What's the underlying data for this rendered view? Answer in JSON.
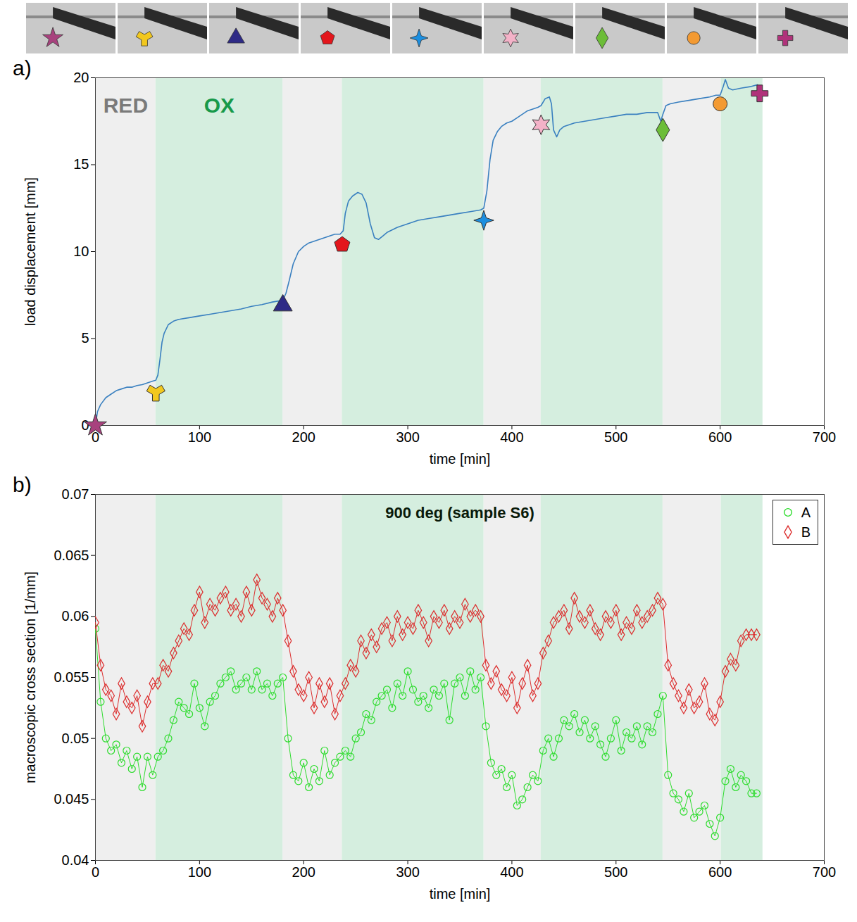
{
  "chart_data": [
    {
      "type": "line",
      "panel": "a)",
      "x_label": "time [min]",
      "y_label": "load displacement [mm]",
      "color": "#3a80c0",
      "xlim": [
        0,
        700
      ],
      "xticks": [
        0,
        100,
        200,
        300,
        400,
        500,
        600,
        700
      ],
      "ylim": [
        0,
        20
      ],
      "yticks": [
        0,
        5,
        10,
        15,
        20
      ],
      "bands": [
        {
          "start": 0,
          "end": 58,
          "phase": "RED"
        },
        {
          "start": 58,
          "end": 180,
          "phase": "OX"
        },
        {
          "start": 180,
          "end": 237,
          "phase": "RED"
        },
        {
          "start": 237,
          "end": 373,
          "phase": "OX"
        },
        {
          "start": 373,
          "end": 428,
          "phase": "RED"
        },
        {
          "start": 428,
          "end": 545,
          "phase": "OX"
        },
        {
          "start": 545,
          "end": 601,
          "phase": "RED"
        },
        {
          "start": 601,
          "end": 641,
          "phase": "OX"
        }
      ],
      "markers": [
        {
          "x": 0,
          "y": 0,
          "marker": "star",
          "color": "#a8427e"
        },
        {
          "x": 58,
          "y": 1.9,
          "marker": "wye",
          "color": "#f2c81e"
        },
        {
          "x": 180,
          "y": 6.9,
          "marker": "triangle",
          "color": "#2e2a86"
        },
        {
          "x": 237,
          "y": 10.4,
          "marker": "pentagon",
          "color": "#e3161c"
        },
        {
          "x": 373,
          "y": 11.8,
          "marker": "star4",
          "color": "#1c8fe0"
        },
        {
          "x": 428,
          "y": 17.3,
          "marker": "star6",
          "color": "#f4b2c8"
        },
        {
          "x": 545,
          "y": 17,
          "marker": "diamond",
          "color": "#6cbd38"
        },
        {
          "x": 600,
          "y": 18.5,
          "marker": "circle",
          "color": "#f39a32"
        },
        {
          "x": 638,
          "y": 19.1,
          "marker": "plus",
          "color": "#b0327a"
        }
      ],
      "x": [
        0,
        2,
        5,
        10,
        15,
        20,
        25,
        30,
        35,
        40,
        45,
        50,
        55,
        58,
        60,
        62,
        64,
        66,
        70,
        75,
        80,
        90,
        100,
        110,
        120,
        130,
        140,
        150,
        160,
        170,
        180,
        183,
        186,
        190,
        195,
        200,
        205,
        210,
        215,
        220,
        225,
        230,
        235,
        238,
        240,
        243,
        247,
        252,
        256,
        260,
        264,
        268,
        272,
        276,
        280,
        290,
        300,
        310,
        320,
        330,
        340,
        350,
        360,
        370,
        373,
        376,
        379,
        382,
        386,
        390,
        395,
        400,
        405,
        410,
        415,
        420,
        425,
        428,
        432,
        436,
        438,
        440,
        443,
        446,
        450,
        460,
        470,
        480,
        490,
        500,
        510,
        520,
        530,
        540,
        543,
        545,
        548,
        552,
        560,
        570,
        580,
        590,
        596,
        600,
        603,
        605,
        608,
        612,
        620,
        630,
        636
      ],
      "values": [
        0,
        0.8,
        1.2,
        1.6,
        1.8,
        2.0,
        2.1,
        2.2,
        2.2,
        2.3,
        2.35,
        2.45,
        2.55,
        2.6,
        2.9,
        3.8,
        4.8,
        5.3,
        5.8,
        6.0,
        6.1,
        6.2,
        6.3,
        6.4,
        6.5,
        6.6,
        6.7,
        6.85,
        6.95,
        7.1,
        7.2,
        7.6,
        8.3,
        9.3,
        10.0,
        10.3,
        10.5,
        10.6,
        10.7,
        10.8,
        10.9,
        11.0,
        11.0,
        11.2,
        12.2,
        12.9,
        13.2,
        13.4,
        13.3,
        12.8,
        11.6,
        10.8,
        10.7,
        10.9,
        11.1,
        11.4,
        11.6,
        11.8,
        11.9,
        12.0,
        12.1,
        12.2,
        12.3,
        12.4,
        12.5,
        13.5,
        15.3,
        16.4,
        16.9,
        17.2,
        17.4,
        17.5,
        17.7,
        17.9,
        18.1,
        18.2,
        18.3,
        18.4,
        18.8,
        18.9,
        18.5,
        17.0,
        16.6,
        17.0,
        17.2,
        17.4,
        17.5,
        17.6,
        17.7,
        17.8,
        17.9,
        17.9,
        18.0,
        18.0,
        17.5,
        17.9,
        18.4,
        18.5,
        18.6,
        18.7,
        18.8,
        18.9,
        19.0,
        19.0,
        19.5,
        19.9,
        19.4,
        19.3,
        19.4,
        19.5,
        19.6
      ]
    },
    {
      "type": "scatter",
      "panel": "b)",
      "title": "900 deg (sample S6)",
      "x_label": "time [min]",
      "y_label": "macroscopic cross section [1/mm]",
      "xlim": [
        0,
        700
      ],
      "xticks": [
        0,
        100,
        200,
        300,
        400,
        500,
        600,
        700
      ],
      "ylim": [
        0.04,
        0.07
      ],
      "yticks": [
        0.04,
        0.045,
        0.05,
        0.055,
        0.06,
        0.065,
        0.07
      ],
      "legend": "top-right",
      "bands": [
        {
          "start": 0,
          "end": 58
        },
        {
          "start": 58,
          "end": 180
        },
        {
          "start": 180,
          "end": 237
        },
        {
          "start": 237,
          "end": 373
        },
        {
          "start": 373,
          "end": 428
        },
        {
          "start": 428,
          "end": 545
        },
        {
          "start": 545,
          "end": 601
        },
        {
          "start": 601,
          "end": 641
        }
      ],
      "x": [
        0,
        5,
        10,
        15,
        20,
        25,
        30,
        35,
        40,
        45,
        50,
        55,
        60,
        65,
        70,
        75,
        80,
        85,
        90,
        95,
        100,
        105,
        110,
        115,
        120,
        125,
        130,
        135,
        140,
        145,
        150,
        155,
        160,
        165,
        170,
        175,
        180,
        185,
        190,
        195,
        200,
        205,
        210,
        215,
        220,
        225,
        230,
        235,
        240,
        245,
        250,
        255,
        260,
        265,
        270,
        275,
        280,
        285,
        290,
        295,
        300,
        305,
        310,
        315,
        320,
        325,
        330,
        335,
        340,
        345,
        350,
        355,
        360,
        365,
        370,
        375,
        380,
        385,
        390,
        395,
        400,
        405,
        410,
        415,
        420,
        425,
        430,
        435,
        440,
        445,
        450,
        455,
        460,
        465,
        470,
        475,
        480,
        485,
        490,
        495,
        500,
        505,
        510,
        515,
        520,
        525,
        530,
        535,
        540,
        545,
        550,
        555,
        560,
        565,
        570,
        575,
        580,
        585,
        590,
        595,
        600,
        605,
        610,
        615,
        620,
        625,
        630,
        635
      ],
      "series": [
        {
          "name": "A",
          "color": "#2edc2e",
          "marker": "circle",
          "values": [
            0.059,
            0.053,
            0.05,
            0.049,
            0.0495,
            0.048,
            0.049,
            0.0475,
            0.0485,
            0.046,
            0.0485,
            0.047,
            0.0485,
            0.049,
            0.05,
            0.0515,
            0.053,
            0.0525,
            0.052,
            0.0545,
            0.0525,
            0.051,
            0.053,
            0.0535,
            0.0545,
            0.055,
            0.0555,
            0.054,
            0.0545,
            0.055,
            0.054,
            0.0555,
            0.054,
            0.0545,
            0.0535,
            0.0545,
            0.055,
            0.05,
            0.047,
            0.0465,
            0.048,
            0.046,
            0.0475,
            0.0465,
            0.049,
            0.047,
            0.048,
            0.0485,
            0.049,
            0.0485,
            0.05,
            0.0505,
            0.052,
            0.0515,
            0.053,
            0.0535,
            0.054,
            0.0525,
            0.0545,
            0.0535,
            0.0555,
            0.054,
            0.053,
            0.0535,
            0.0525,
            0.054,
            0.0535,
            0.0545,
            0.0515,
            0.0545,
            0.055,
            0.0535,
            0.0555,
            0.054,
            0.055,
            0.051,
            0.048,
            0.047,
            0.0475,
            0.046,
            0.047,
            0.0445,
            0.045,
            0.046,
            0.047,
            0.0465,
            0.049,
            0.05,
            0.0485,
            0.05,
            0.0515,
            0.051,
            0.052,
            0.0505,
            0.0515,
            0.05,
            0.051,
            0.0495,
            0.0485,
            0.05,
            0.0515,
            0.049,
            0.0505,
            0.05,
            0.051,
            0.0495,
            0.051,
            0.0505,
            0.052,
            0.0535,
            0.047,
            0.0455,
            0.045,
            0.044,
            0.0455,
            0.0435,
            0.044,
            0.0445,
            0.043,
            0.042,
            0.0435,
            0.0465,
            0.0475,
            0.046,
            0.047,
            0.0465,
            0.0455,
            0.0455
          ]
        },
        {
          "name": "B",
          "color": "#dc2e2e",
          "marker": "diamond",
          "values": [
            0.0595,
            0.056,
            0.054,
            0.0535,
            0.052,
            0.0545,
            0.053,
            0.0525,
            0.0535,
            0.051,
            0.053,
            0.0545,
            0.0545,
            0.056,
            0.0555,
            0.057,
            0.058,
            0.059,
            0.0585,
            0.0605,
            0.062,
            0.0595,
            0.061,
            0.0605,
            0.0615,
            0.062,
            0.0605,
            0.061,
            0.06,
            0.062,
            0.0605,
            0.063,
            0.0615,
            0.061,
            0.06,
            0.0615,
            0.0605,
            0.058,
            0.0555,
            0.054,
            0.0535,
            0.055,
            0.0525,
            0.0545,
            0.053,
            0.0545,
            0.052,
            0.0535,
            0.0545,
            0.056,
            0.0555,
            0.058,
            0.057,
            0.0585,
            0.0575,
            0.059,
            0.0595,
            0.058,
            0.06,
            0.0585,
            0.0595,
            0.059,
            0.0605,
            0.0595,
            0.058,
            0.06,
            0.0595,
            0.0605,
            0.059,
            0.06,
            0.0595,
            0.061,
            0.06,
            0.0605,
            0.06,
            0.056,
            0.0545,
            0.0555,
            0.054,
            0.0535,
            0.055,
            0.0525,
            0.0545,
            0.056,
            0.0535,
            0.0545,
            0.057,
            0.058,
            0.0595,
            0.06,
            0.0605,
            0.059,
            0.0615,
            0.06,
            0.0595,
            0.0605,
            0.059,
            0.0585,
            0.06,
            0.0595,
            0.0605,
            0.0585,
            0.0595,
            0.059,
            0.0605,
            0.0595,
            0.06,
            0.0605,
            0.0615,
            0.061,
            0.056,
            0.0545,
            0.0535,
            0.0525,
            0.054,
            0.0525,
            0.053,
            0.0545,
            0.052,
            0.0515,
            0.053,
            0.0555,
            0.0565,
            0.056,
            0.058,
            0.0585,
            0.0585,
            0.0585
          ]
        }
      ]
    }
  ]
}
